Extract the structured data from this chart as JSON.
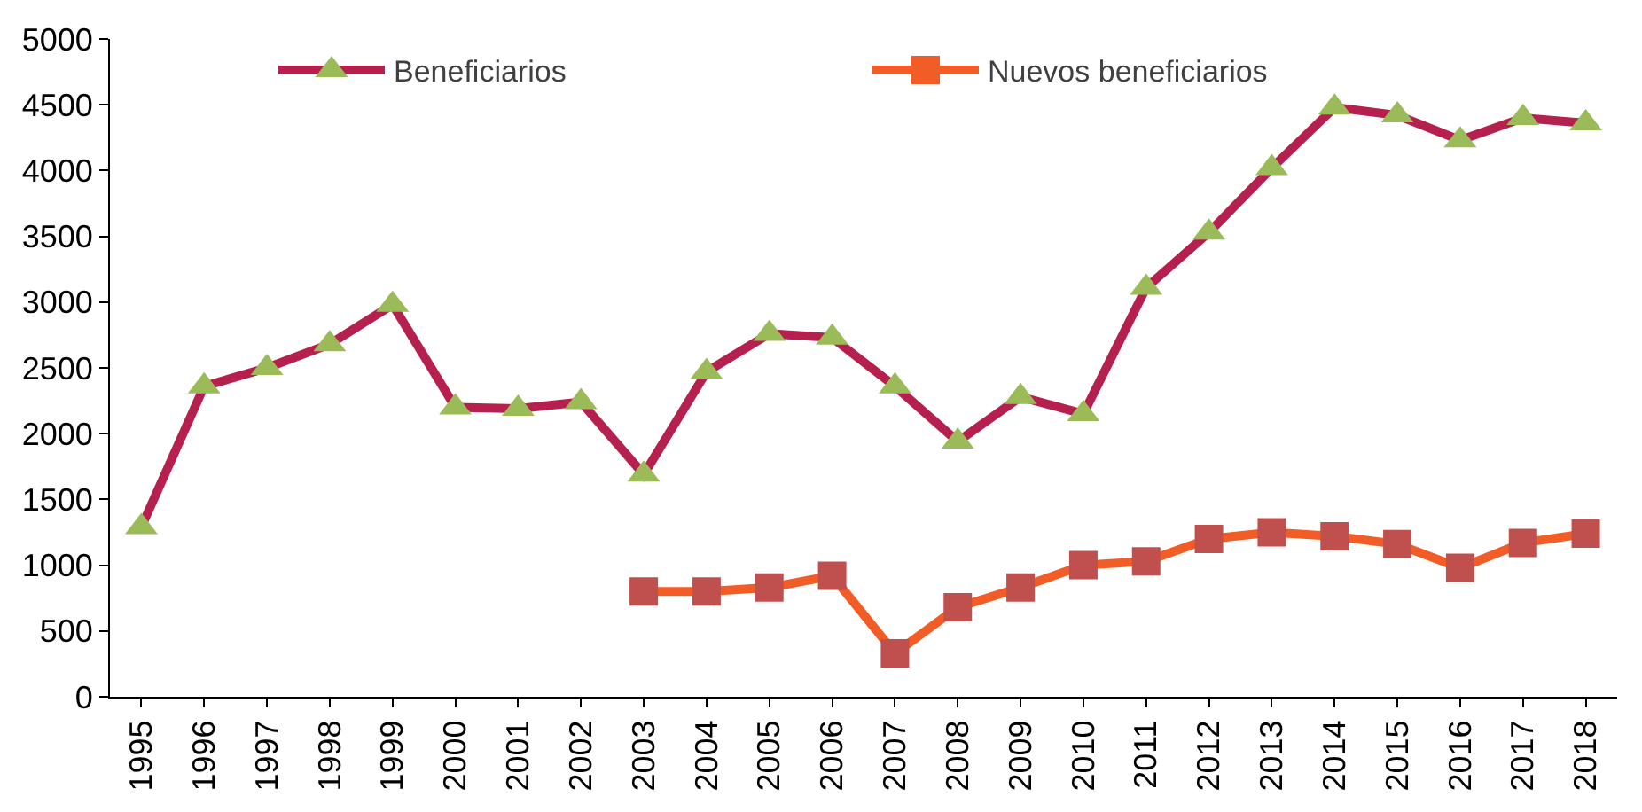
{
  "chart_data": {
    "type": "line",
    "categories": [
      "1995",
      "1996",
      "1997",
      "1998",
      "1999",
      "2000",
      "2001",
      "2002",
      "2003",
      "2004",
      "2005",
      "2006",
      "2007",
      "2008",
      "2009",
      "2010",
      "2011",
      "2012",
      "2013",
      "2014",
      "2015",
      "2016",
      "2017",
      "2018"
    ],
    "ylim": [
      0,
      5000
    ],
    "yticks": [
      0,
      500,
      1000,
      1500,
      2000,
      2500,
      3000,
      3500,
      4000,
      4500,
      5000
    ],
    "legend": "top",
    "line_style": "solid",
    "series": [
      {
        "name": "Beneficiarios",
        "color": "#b5204f",
        "marker": "triangle",
        "colors": [
          "#9bbb59",
          "#9bbb59",
          "#9bbb59",
          "#9bbb59",
          "#9bbb59",
          "#9bbb59",
          "#9bbb59",
          "#9bbb59",
          "#9bbb59",
          "#9bbb59",
          "#9bbb59",
          "#9bbb59",
          "#9bbb59",
          "#9bbb59",
          "#9bbb59",
          "#9bbb59",
          "#9bbb59",
          "#9bbb59",
          "#9bbb59",
          "#9bbb59",
          "#9bbb59",
          "#9bbb59",
          "#9bbb59",
          "#9bbb59"
        ],
        "values": [
          1290,
          2360,
          2500,
          2680,
          2980,
          2200,
          2190,
          2240,
          1690,
          2470,
          2760,
          2730,
          2360,
          1940,
          2280,
          2150,
          3110,
          3530,
          4020,
          4480,
          4420,
          4230,
          4400,
          4360
        ]
      },
      {
        "name": "Nuevos beneficiarios",
        "color": "#f25c27",
        "marker": "square",
        "colors": [
          null,
          null,
          null,
          null,
          null,
          null,
          null,
          null,
          "#c0504d",
          "#c0504d",
          "#c0504d",
          "#c0504d",
          "#c0504d",
          "#c0504d",
          "#c0504d",
          "#c0504d",
          "#c0504d",
          "#c0504d",
          "#c0504d",
          "#c0504d",
          "#c0504d",
          "#c0504d",
          "#c0504d",
          "#c0504d"
        ],
        "values": [
          null,
          null,
          null,
          null,
          null,
          null,
          null,
          null,
          800,
          800,
          830,
          920,
          330,
          680,
          830,
          1000,
          1030,
          1200,
          1250,
          1220,
          1160,
          980,
          1170,
          1240
        ]
      }
    ]
  }
}
